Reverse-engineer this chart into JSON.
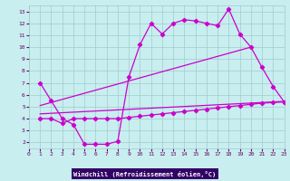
{
  "xlabel": "Windchill (Refroidissement éolien,°C)",
  "bg_color": "#c8eef0",
  "grid_color": "#a0cccc",
  "line_color": "#cc00cc",
  "label_bar_color": "#330066",
  "xlim": [
    0,
    23
  ],
  "ylim": [
    1.5,
    13.5
  ],
  "xticks": [
    0,
    1,
    2,
    3,
    4,
    5,
    6,
    7,
    8,
    9,
    10,
    11,
    12,
    13,
    14,
    15,
    16,
    17,
    18,
    19,
    20,
    21,
    22,
    23
  ],
  "yticks": [
    2,
    3,
    4,
    5,
    6,
    7,
    8,
    9,
    10,
    11,
    12,
    13
  ],
  "curve1_x": [
    1,
    2,
    3,
    4,
    5,
    6,
    7,
    8,
    9,
    10,
    11,
    12,
    13,
    14,
    15,
    16,
    17,
    18,
    19,
    20,
    21,
    22,
    23
  ],
  "curve1_y": [
    7.0,
    5.5,
    4.0,
    3.5,
    1.85,
    1.85,
    1.85,
    2.1,
    7.5,
    10.2,
    12.0,
    11.1,
    12.0,
    12.3,
    12.2,
    12.0,
    11.8,
    13.2,
    11.1,
    10.0,
    8.3,
    6.7,
    5.4
  ],
  "curve2_x": [
    1,
    2,
    3,
    4,
    5,
    6,
    7,
    8,
    9,
    10,
    11,
    12,
    13,
    14,
    15,
    16,
    17,
    18,
    19,
    20,
    21,
    22,
    23
  ],
  "curve2_y": [
    4.0,
    4.0,
    3.6,
    4.0,
    4.0,
    4.0,
    4.0,
    4.0,
    4.1,
    4.2,
    4.3,
    4.4,
    4.5,
    4.6,
    4.7,
    4.8,
    4.9,
    5.0,
    5.1,
    5.2,
    5.3,
    5.35,
    5.4
  ],
  "line1_x": [
    1,
    20
  ],
  "line1_y": [
    5.1,
    10.0
  ],
  "line2_x": [
    1,
    23
  ],
  "line2_y": [
    4.4,
    5.45
  ],
  "tick_color": "#660066",
  "xlabel_color": "#ffffff",
  "xlabel_bg": "#330066"
}
